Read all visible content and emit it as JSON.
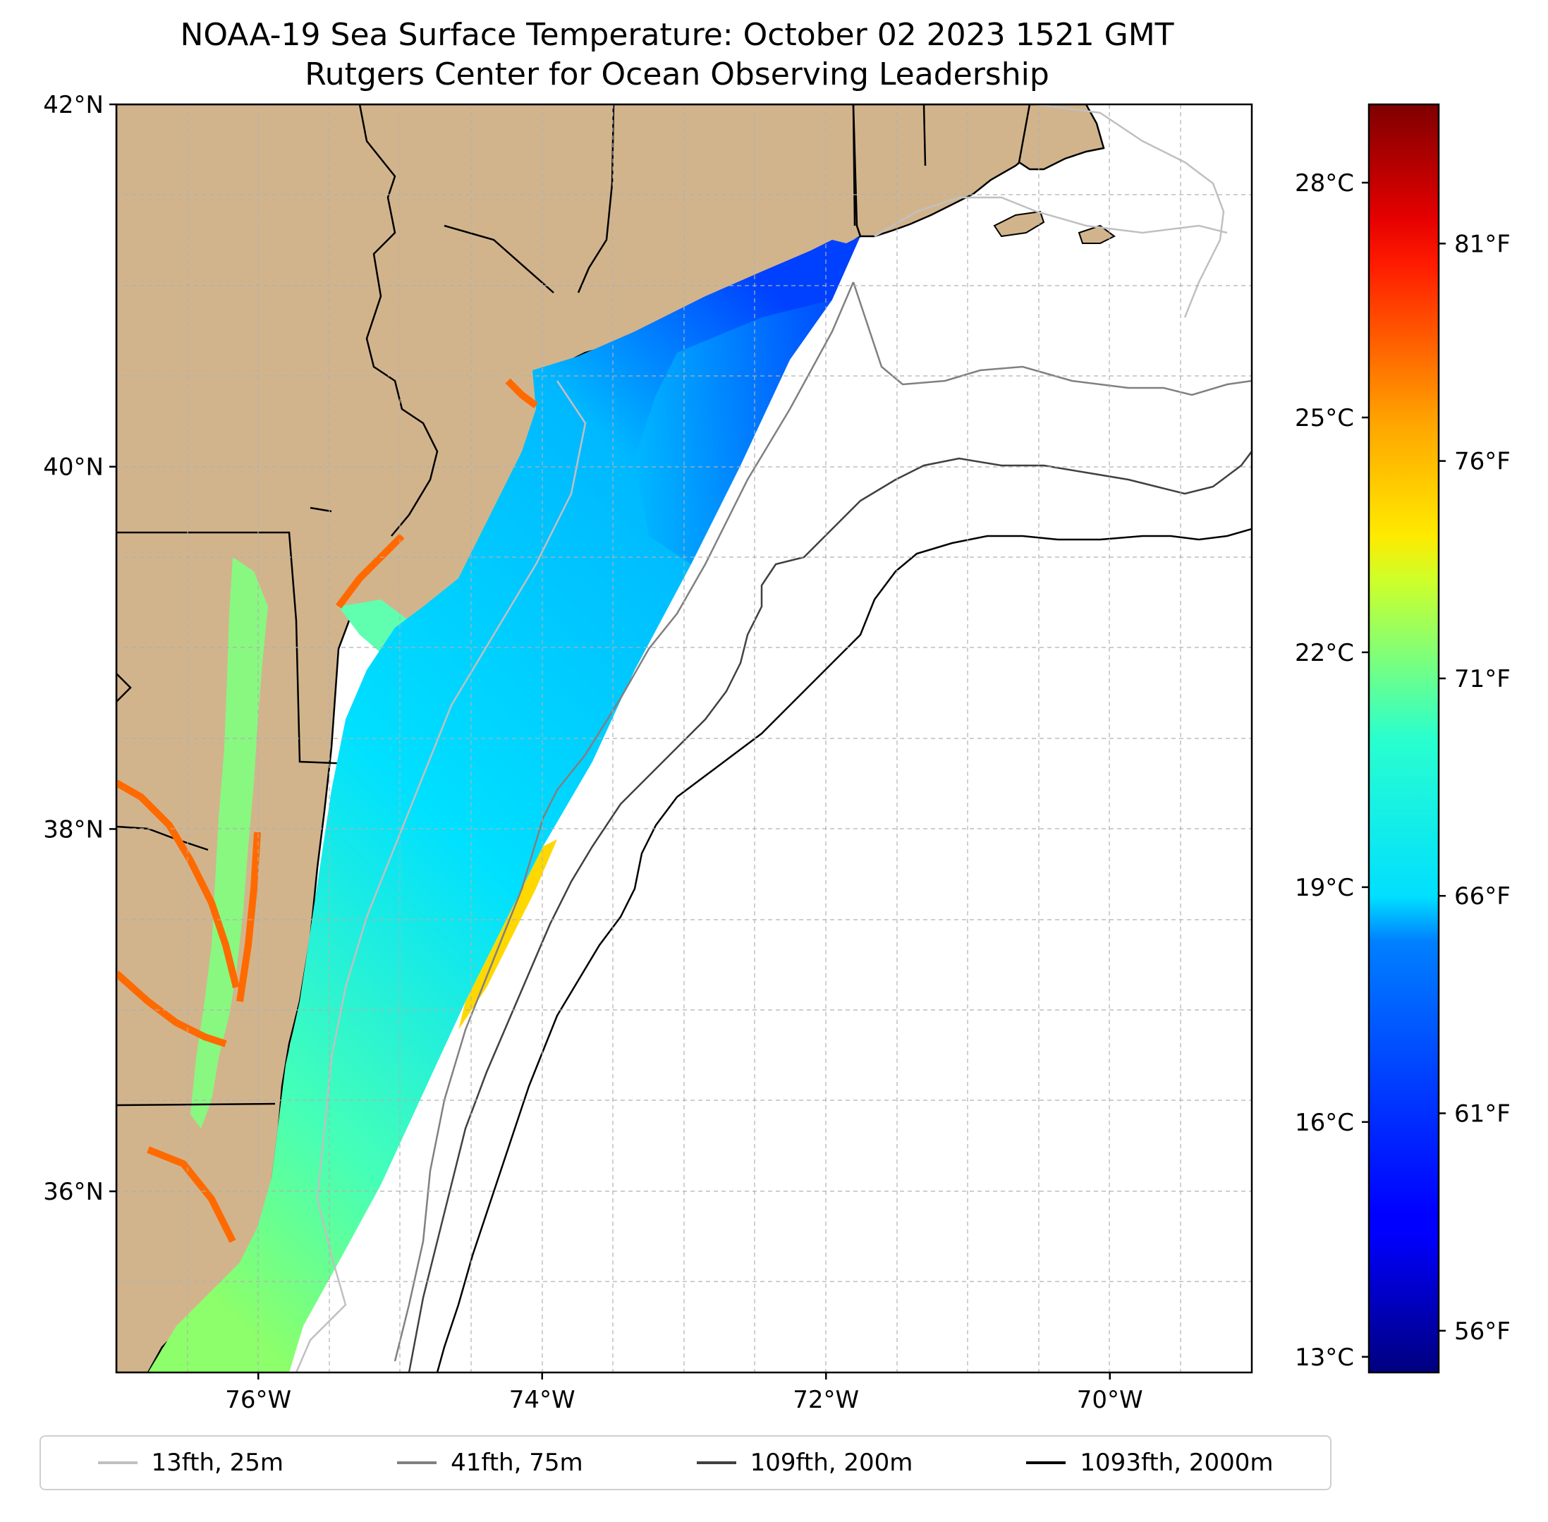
{
  "title": {
    "line1": "NOAA-19 Sea Surface Temperature: October 02 2023 1521 GMT",
    "line2": "Rutgers Center for Ocean Observing Leadership"
  },
  "map": {
    "lon_range": [
      -77.0,
      -69.0
    ],
    "lat_range": [
      35.0,
      42.0
    ],
    "lon_ticks": [
      {
        "value": -76,
        "label": "76°W"
      },
      {
        "value": -74,
        "label": "74°W"
      },
      {
        "value": -72,
        "label": "72°W"
      },
      {
        "value": -70,
        "label": "70°W"
      }
    ],
    "lat_ticks": [
      {
        "value": 42,
        "label": "42°N"
      },
      {
        "value": 40,
        "label": "40°N"
      },
      {
        "value": 38,
        "label": "38°N"
      },
      {
        "value": 36,
        "label": "36°N"
      }
    ],
    "grid": true,
    "land_color": "#d2b48c"
  },
  "colorbar": {
    "celsius_range": [
      12.8,
      29.0
    ],
    "celsius_ticks": [
      {
        "value": 13,
        "label": "13°C"
      },
      {
        "value": 16,
        "label": "16°C"
      },
      {
        "value": 19,
        "label": "19°C"
      },
      {
        "value": 22,
        "label": "22°C"
      },
      {
        "value": 25,
        "label": "25°C"
      },
      {
        "value": 28,
        "label": "28°C"
      }
    ],
    "fahrenheit_ticks": [
      {
        "value": 56,
        "label": "56°F"
      },
      {
        "value": 61,
        "label": "61°F"
      },
      {
        "value": 66,
        "label": "66°F"
      },
      {
        "value": 71,
        "label": "71°F"
      },
      {
        "value": 76,
        "label": "76°F"
      },
      {
        "value": 81,
        "label": "81°F"
      }
    ],
    "colormap": "jet"
  },
  "legend": {
    "items": [
      {
        "label": "13fth, 25m",
        "color": "#c0c0c0"
      },
      {
        "label": "41fth, 75m",
        "color": "#808080"
      },
      {
        "label": "109fth, 200m",
        "color": "#404040"
      },
      {
        "label": "1093fth, 2000m",
        "color": "#000000"
      }
    ]
  }
}
